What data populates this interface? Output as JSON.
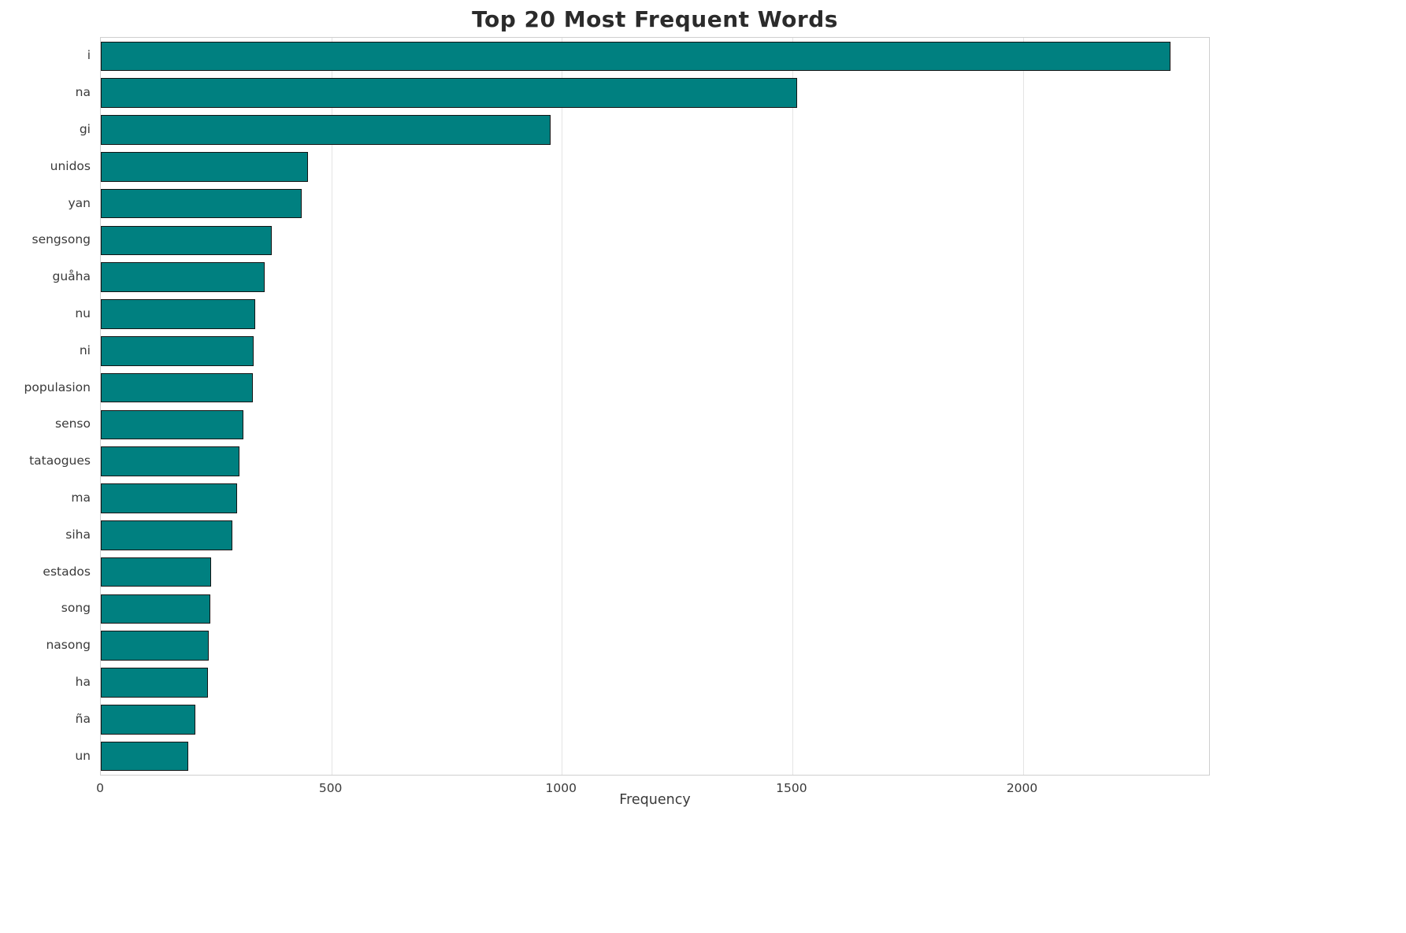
{
  "chart_data": {
    "type": "bar",
    "orientation": "horizontal",
    "title": "Top 20 Most Frequent Words",
    "xlabel": "Frequency",
    "ylabel": "",
    "categories": [
      "i",
      "na",
      "gi",
      "unidos",
      "yan",
      "sengsong",
      "guåha",
      "nu",
      "ni",
      "populasion",
      "senso",
      "tataogues",
      "ma",
      "siha",
      "estados",
      "song",
      "nasong",
      "ha",
      "ña",
      "un"
    ],
    "values": [
      2320,
      1510,
      975,
      450,
      435,
      370,
      355,
      335,
      332,
      330,
      310,
      300,
      295,
      285,
      240,
      237,
      234,
      232,
      205,
      190
    ],
    "xlim": [
      0,
      2404
    ],
    "xticks": [
      0,
      500,
      1000,
      1500,
      2000
    ],
    "grid": true,
    "legend": "none",
    "bar_color": "#008080",
    "bar_edge_color": "#141414",
    "background_color": "#ffffff",
    "grid_color": "#e4e4e4"
  }
}
